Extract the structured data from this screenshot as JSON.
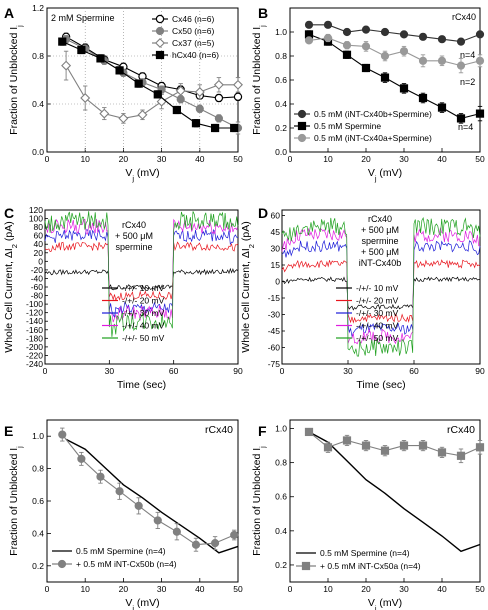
{
  "chart_data": [
    {
      "panel": "A",
      "type": "line",
      "annotation": "2 mM Spermine",
      "xlabel": "V",
      "xlabel_sub": "j",
      "xlabel_unit": " (mV)",
      "ylabel": "Fraction of Unblocked I",
      "ylabel_sub": "j",
      "xlim": [
        0,
        50
      ],
      "ylim": [
        0,
        1.2
      ],
      "xticks": [
        0,
        10,
        20,
        30,
        40,
        50
      ],
      "yticks": [
        0.0,
        0.4,
        0.8,
        1.2
      ],
      "ytick_labels": [
        "0.0",
        "0.4",
        "0.8",
        "1.2"
      ],
      "grid": "dotted",
      "legend": "top-right",
      "series": [
        {
          "name": "Cx46 (n=6)",
          "marker": "circle-open",
          "color": "#000000",
          "x": [
            5,
            10,
            15,
            20,
            25,
            30,
            35,
            40,
            45,
            50
          ],
          "y": [
            0.96,
            0.87,
            0.77,
            0.71,
            0.63,
            0.55,
            0.52,
            0.47,
            0.45,
            0.46
          ],
          "err": [
            0.03,
            0.03,
            0.03,
            0.03,
            0.03,
            0.03,
            0.03,
            0.03,
            0.03,
            0.03
          ]
        },
        {
          "name": "Cx50 (n=6)",
          "marker": "circle-filled",
          "color": "#808080",
          "x": [
            5,
            10,
            15,
            20,
            25,
            30,
            35,
            40,
            45,
            50
          ],
          "y": [
            0.94,
            0.86,
            0.76,
            0.66,
            0.58,
            0.52,
            0.44,
            0.36,
            0.28,
            0.2
          ],
          "err": [
            0.03,
            0.03,
            0.03,
            0.03,
            0.03,
            0.03,
            0.03,
            0.03,
            0.03,
            0.05
          ]
        },
        {
          "name": "Cx37 (n=5)",
          "marker": "diamond-open",
          "color": "#808080",
          "x": [
            5,
            10,
            15,
            20,
            25,
            30,
            35,
            40,
            45,
            50
          ],
          "y": [
            0.72,
            0.45,
            0.32,
            0.28,
            0.31,
            0.42,
            0.51,
            0.5,
            0.56,
            0.56
          ],
          "err": [
            0.12,
            0.1,
            0.05,
            0.04,
            0.04,
            0.06,
            0.06,
            0.06,
            0.06,
            0.06
          ]
        },
        {
          "name": "hCx40 (n=6)",
          "marker": "square-filled",
          "color": "#000000",
          "x": [
            4,
            9,
            14,
            19,
            24,
            29,
            34,
            39,
            44,
            49
          ],
          "y": [
            0.92,
            0.85,
            0.78,
            0.68,
            0.57,
            0.48,
            0.35,
            0.24,
            0.2,
            0.2
          ],
          "err": [
            0.03,
            0.03,
            0.03,
            0.03,
            0.03,
            0.03,
            0.03,
            0.03,
            0.03,
            0.03
          ]
        }
      ]
    },
    {
      "panel": "B",
      "type": "line",
      "annotation": "rCx40",
      "xlabel": "V",
      "xlabel_sub": "j",
      "xlabel_unit": " (mV)",
      "ylabel": "Fraction of Unblocked I",
      "ylabel_sub": "j",
      "xlim": [
        0,
        50
      ],
      "ylim": [
        0,
        1.2
      ],
      "xticks": [
        0,
        10,
        20,
        30,
        40,
        50
      ],
      "yticks": [
        0.0,
        0.2,
        0.4,
        0.6,
        0.8,
        1.0
      ],
      "ytick_labels": [
        "0.0",
        "0.2",
        "0.4",
        "0.6",
        "0.8",
        "1.0"
      ],
      "legend": "bottom-left",
      "n_labels": [
        {
          "text": "n=4",
          "series": 0
        },
        {
          "text": "n=2",
          "series": 2
        },
        {
          "text": "n=4",
          "series": 1
        }
      ],
      "series": [
        {
          "name": "0.5 mM (iNT-Cx40b+Spermine)",
          "marker": "circle-filled",
          "color": "#333333",
          "x": [
            5,
            10,
            15,
            20,
            25,
            30,
            35,
            40,
            45,
            50
          ],
          "y": [
            1.06,
            1.06,
            1.0,
            1.02,
            1.0,
            0.98,
            0.96,
            0.94,
            0.92,
            0.98
          ],
          "err": [
            0.02,
            0.02,
            0.02,
            0.02,
            0.02,
            0.02,
            0.02,
            0.02,
            0.02,
            0.02
          ]
        },
        {
          "name": "0.5 mM Spermine",
          "marker": "square-filled",
          "color": "#000000",
          "x": [
            5,
            10,
            15,
            20,
            25,
            30,
            35,
            40,
            45,
            50
          ],
          "y": [
            0.98,
            0.92,
            0.81,
            0.7,
            0.62,
            0.53,
            0.45,
            0.37,
            0.28,
            0.32
          ],
          "err": [
            0.03,
            0.03,
            0.03,
            0.03,
            0.04,
            0.04,
            0.04,
            0.04,
            0.04,
            0.06
          ]
        },
        {
          "name": "0.5 mM (iNT-Cx40a+Spermine)",
          "marker": "circle-filled",
          "color": "#999999",
          "x": [
            5,
            10,
            15,
            20,
            25,
            30,
            35,
            40,
            45,
            50
          ],
          "y": [
            0.93,
            0.95,
            0.89,
            0.88,
            0.8,
            0.84,
            0.76,
            0.76,
            0.72,
            0.76
          ],
          "err": [
            0.02,
            0.03,
            0.03,
            0.04,
            0.04,
            0.04,
            0.05,
            0.04,
            0.06,
            0.05
          ]
        }
      ]
    },
    {
      "panel": "C",
      "type": "line",
      "annotation_lines": [
        "rCx40",
        "+ 500 μM",
        "spermine"
      ],
      "xlabel": "Time (sec)",
      "ylabel": "Whole Cell Current, ΔI",
      "ylabel_sub": "2",
      "ylabel_unit": " (pA)",
      "xlim": [
        0,
        90
      ],
      "ylim": [
        -240,
        120
      ],
      "xticks": [
        0,
        30,
        60,
        90
      ],
      "yticks": [
        -240,
        -220,
        -200,
        -180,
        -160,
        -140,
        -120,
        -100,
        -80,
        -60,
        -40,
        -20,
        0,
        20,
        40,
        60,
        80,
        100,
        120
      ],
      "legend": "bottom-right",
      "series": [
        {
          "name": "-/+/- 10 mV",
          "color": "#000000",
          "pos": -25,
          "neg": 0,
          "mid": -60
        },
        {
          "name": "-/+/- 20 mV",
          "color": "#e8141c",
          "pos": 35,
          "neg": 0,
          "mid": -80
        },
        {
          "name": "-/+/- 30 mV",
          "color": "#1c1cd8",
          "pos": 60,
          "neg": 0,
          "mid": -110
        },
        {
          "name": "-/+/- 40 mV",
          "color": "#e01ce0",
          "pos": 82,
          "neg": 0,
          "mid": -120
        },
        {
          "name": "-/+/- 50 mV",
          "color": "#1ea01e",
          "pos": 95,
          "neg": 0,
          "mid": -140
        }
      ]
    },
    {
      "panel": "D",
      "type": "line",
      "annotation_lines": [
        "rCx40",
        "+ 500 μM",
        "spermine",
        "+ 500 μM",
        "iNT-Cx40b"
      ],
      "xlabel": "Time (sec)",
      "ylabel": "Whole Cell Current, ΔI",
      "ylabel_sub": "2",
      "ylabel_unit": " (pA)",
      "xlim": [
        0,
        90
      ],
      "ylim": [
        -75,
        65
      ],
      "xticks": [
        0,
        30,
        60,
        90
      ],
      "yticks": [
        -75,
        -60,
        -45,
        -30,
        -15,
        0,
        15,
        30,
        45,
        60
      ],
      "legend": "bottom-right",
      "series": [
        {
          "name": "-/+/- 10 mV",
          "color": "#000000",
          "pos": 2,
          "mid": -23
        },
        {
          "name": "-/+/- 20 mV",
          "color": "#e8141c",
          "pos": 16,
          "mid": -33
        },
        {
          "name": "-/+/- 30 mV",
          "color": "#1c1cd8",
          "pos": 32,
          "mid": -43
        },
        {
          "name": "-/+/- 40 mV",
          "color": "#e01ce0",
          "pos": 42,
          "mid": -50
        },
        {
          "name": "-/+/- 50 mV",
          "color": "#1ea01e",
          "pos": 50,
          "mid": -60
        }
      ]
    },
    {
      "panel": "E",
      "type": "line",
      "annotation": "rCx40",
      "xlabel": "V",
      "xlabel_sub": "j",
      "xlabel_unit": " (mV)",
      "ylabel": "Fraction of Unblocked I",
      "ylabel_sub": "j",
      "xlim": [
        0,
        50
      ],
      "ylim": [
        0.1,
        1.1
      ],
      "xticks": [
        0,
        10,
        20,
        30,
        40,
        50
      ],
      "yticks": [
        0.2,
        0.4,
        0.6,
        0.8,
        1.0
      ],
      "ytick_labels": [
        "0.2",
        "0.4",
        "0.6",
        "0.8",
        "1.0"
      ],
      "legend": "bottom-left",
      "series": [
        {
          "name": "0.5 mM Spermine (n=4)",
          "marker": "none",
          "color": "#000000",
          "x": [
            5,
            10,
            15,
            20,
            25,
            30,
            35,
            40,
            45,
            50
          ],
          "y": [
            0.98,
            0.92,
            0.81,
            0.7,
            0.62,
            0.53,
            0.45,
            0.37,
            0.28,
            0.32
          ]
        },
        {
          "name": "+ 0.5 mM iNT-Cx50b (n=4)",
          "marker": "circle-filled",
          "color": "#808080",
          "x": [
            4,
            9,
            14,
            19,
            24,
            29,
            34,
            39,
            44,
            49
          ],
          "y": [
            1.01,
            0.86,
            0.75,
            0.66,
            0.57,
            0.48,
            0.41,
            0.33,
            0.34,
            0.39
          ],
          "err": [
            0.04,
            0.04,
            0.04,
            0.05,
            0.05,
            0.05,
            0.05,
            0.04,
            0.04,
            0.03
          ]
        }
      ]
    },
    {
      "panel": "F",
      "type": "line",
      "annotation": "rCx40",
      "xlabel": "V",
      "xlabel_sub": "j",
      "xlabel_unit": " (mV)",
      "ylabel": "Fraction of Unblocked I",
      "ylabel_sub": "j",
      "xlim": [
        0,
        50
      ],
      "ylim": [
        0.1,
        1.05
      ],
      "xticks": [
        0,
        10,
        20,
        30,
        40,
        50
      ],
      "yticks": [
        0.2,
        0.4,
        0.6,
        0.8,
        1.0
      ],
      "ytick_labels": [
        "0.2",
        "0.4",
        "0.6",
        "0.8",
        "1.0"
      ],
      "legend": "bottom-left",
      "series": [
        {
          "name": "0.5 mM Spermine (n=4)",
          "marker": "none",
          "color": "#000000",
          "x": [
            5,
            10,
            15,
            20,
            25,
            30,
            35,
            40,
            45,
            50
          ],
          "y": [
            0.98,
            0.92,
            0.81,
            0.7,
            0.62,
            0.53,
            0.45,
            0.37,
            0.28,
            0.32
          ]
        },
        {
          "name": "+ 0.5 mM iNT-Cx50a (n=4)",
          "marker": "square-filled",
          "color": "#808080",
          "x": [
            5,
            10,
            15,
            20,
            25,
            30,
            35,
            40,
            45,
            50
          ],
          "y": [
            0.98,
            0.89,
            0.93,
            0.9,
            0.87,
            0.9,
            0.9,
            0.86,
            0.84,
            0.89
          ],
          "err": [
            0.02,
            0.03,
            0.03,
            0.03,
            0.03,
            0.03,
            0.03,
            0.03,
            0.04,
            0.04
          ]
        }
      ]
    }
  ]
}
